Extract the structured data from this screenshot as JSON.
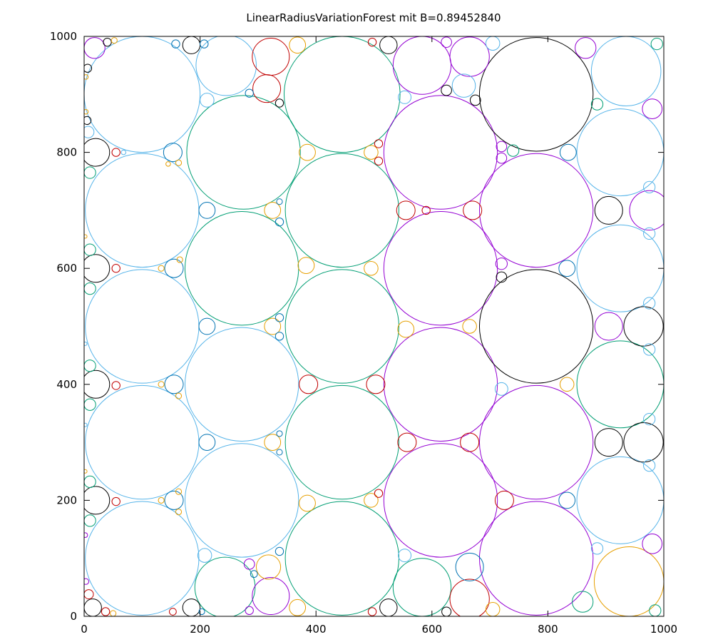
{
  "chart_data": {
    "type": "scatter",
    "title": "LinearRadiusVariationForest mit B=0.89452840",
    "xlabel": "",
    "ylabel": "",
    "xlim": [
      0,
      1000
    ],
    "ylim": [
      0,
      1000
    ],
    "x_ticks": [
      "0",
      "200",
      "400",
      "600",
      "800",
      "1000"
    ],
    "y_ticks": [
      "0",
      "200",
      "400",
      "600",
      "800",
      "1000"
    ],
    "x_tick_values": [
      0,
      200,
      400,
      600,
      800,
      1000
    ],
    "y_tick_values": [
      0,
      200,
      400,
      600,
      800,
      1000
    ],
    "grid": false,
    "colors": {
      "black": "#000000",
      "teal": "#009e73",
      "blue": "#56b4e9",
      "purple": "#9400d3",
      "red": "#c00000",
      "gold": "#e69f00",
      "navy": "#0072b2"
    },
    "circles": [
      {
        "x": 100,
        "y": 900,
        "r": 100,
        "color": "blue"
      },
      {
        "x": 100,
        "y": 700,
        "r": 98,
        "color": "blue"
      },
      {
        "x": 100,
        "y": 500,
        "r": 98,
        "color": "blue"
      },
      {
        "x": 100,
        "y": 300,
        "r": 98,
        "color": "blue"
      },
      {
        "x": 100,
        "y": 100,
        "r": 98,
        "color": "blue"
      },
      {
        "x": 275,
        "y": 800,
        "r": 98,
        "color": "teal"
      },
      {
        "x": 272,
        "y": 600,
        "r": 98,
        "color": "teal"
      },
      {
        "x": 272,
        "y": 400,
        "r": 98,
        "color": "blue"
      },
      {
        "x": 272,
        "y": 200,
        "r": 98,
        "color": "blue"
      },
      {
        "x": 445,
        "y": 900,
        "r": 100,
        "color": "teal"
      },
      {
        "x": 445,
        "y": 700,
        "r": 98,
        "color": "teal"
      },
      {
        "x": 445,
        "y": 500,
        "r": 98,
        "color": "teal"
      },
      {
        "x": 445,
        "y": 300,
        "r": 98,
        "color": "teal"
      },
      {
        "x": 445,
        "y": 100,
        "r": 98,
        "color": "teal"
      },
      {
        "x": 615,
        "y": 800,
        "r": 98,
        "color": "purple"
      },
      {
        "x": 615,
        "y": 600,
        "r": 98,
        "color": "purple"
      },
      {
        "x": 615,
        "y": 400,
        "r": 98,
        "color": "purple"
      },
      {
        "x": 615,
        "y": 200,
        "r": 98,
        "color": "purple"
      },
      {
        "x": 780,
        "y": 900,
        "r": 98,
        "color": "black"
      },
      {
        "x": 780,
        "y": 700,
        "r": 98,
        "color": "purple"
      },
      {
        "x": 780,
        "y": 500,
        "r": 98,
        "color": "black"
      },
      {
        "x": 780,
        "y": 300,
        "r": 98,
        "color": "purple"
      },
      {
        "x": 780,
        "y": 100,
        "r": 98,
        "color": "purple"
      },
      {
        "x": 935,
        "y": 940,
        "r": 60,
        "color": "blue"
      },
      {
        "x": 925,
        "y": 800,
        "r": 75,
        "color": "blue"
      },
      {
        "x": 925,
        "y": 600,
        "r": 75,
        "color": "blue"
      },
      {
        "x": 925,
        "y": 400,
        "r": 75,
        "color": "teal"
      },
      {
        "x": 925,
        "y": 200,
        "r": 75,
        "color": "blue"
      },
      {
        "x": 940,
        "y": 60,
        "r": 60,
        "color": "gold"
      },
      {
        "x": 245,
        "y": 950,
        "r": 52,
        "color": "blue"
      },
      {
        "x": 243,
        "y": 50,
        "r": 52,
        "color": "teal"
      },
      {
        "x": 583,
        "y": 950,
        "r": 50,
        "color": "purple"
      },
      {
        "x": 583,
        "y": 50,
        "r": 50,
        "color": "teal"
      },
      {
        "x": 665,
        "y": 965,
        "r": 34,
        "color": "purple"
      },
      {
        "x": 665,
        "y": 30,
        "r": 34,
        "color": "red"
      },
      {
        "x": 322,
        "y": 965,
        "r": 32,
        "color": "red"
      },
      {
        "x": 322,
        "y": 35,
        "r": 32,
        "color": "purple"
      },
      {
        "x": 315,
        "y": 910,
        "r": 24,
        "color": "red"
      },
      {
        "x": 318,
        "y": 85,
        "r": 21,
        "color": "gold"
      },
      {
        "x": 975,
        "y": 700,
        "r": 34,
        "color": "purple"
      },
      {
        "x": 905,
        "y": 700,
        "r": 24,
        "color": "black"
      },
      {
        "x": 965,
        "y": 500,
        "r": 34,
        "color": "black"
      },
      {
        "x": 905,
        "y": 500,
        "r": 24,
        "color": "purple"
      },
      {
        "x": 965,
        "y": 300,
        "r": 34,
        "color": "black"
      },
      {
        "x": 905,
        "y": 300,
        "r": 24,
        "color": "black"
      },
      {
        "x": 980,
        "y": 875,
        "r": 17,
        "color": "purple"
      },
      {
        "x": 980,
        "y": 125,
        "r": 17,
        "color": "purple"
      },
      {
        "x": 20,
        "y": 800,
        "r": 24,
        "color": "black"
      },
      {
        "x": 20,
        "y": 600,
        "r": 24,
        "color": "black"
      },
      {
        "x": 20,
        "y": 400,
        "r": 24,
        "color": "black"
      },
      {
        "x": 20,
        "y": 200,
        "r": 24,
        "color": "black"
      },
      {
        "x": 18,
        "y": 980,
        "r": 18,
        "color": "purple"
      },
      {
        "x": 15,
        "y": 15,
        "r": 15,
        "color": "black"
      },
      {
        "x": 185,
        "y": 985,
        "r": 15,
        "color": "black"
      },
      {
        "x": 185,
        "y": 15,
        "r": 15,
        "color": "black"
      },
      {
        "x": 525,
        "y": 985,
        "r": 15,
        "color": "black"
      },
      {
        "x": 525,
        "y": 15,
        "r": 15,
        "color": "black"
      },
      {
        "x": 153,
        "y": 800,
        "r": 16,
        "color": "navy"
      },
      {
        "x": 155,
        "y": 600,
        "r": 16,
        "color": "navy"
      },
      {
        "x": 155,
        "y": 400,
        "r": 16,
        "color": "navy"
      },
      {
        "x": 155,
        "y": 200,
        "r": 16,
        "color": "navy"
      },
      {
        "x": 212,
        "y": 700,
        "r": 14,
        "color": "navy"
      },
      {
        "x": 212,
        "y": 500,
        "r": 14,
        "color": "navy"
      },
      {
        "x": 212,
        "y": 300,
        "r": 14,
        "color": "navy"
      },
      {
        "x": 212,
        "y": 890,
        "r": 12,
        "color": "blue"
      },
      {
        "x": 208,
        "y": 105,
        "r": 12,
        "color": "blue"
      },
      {
        "x": 385,
        "y": 800,
        "r": 14,
        "color": "gold"
      },
      {
        "x": 325,
        "y": 700,
        "r": 14,
        "color": "gold"
      },
      {
        "x": 383,
        "y": 605,
        "r": 14,
        "color": "gold"
      },
      {
        "x": 325,
        "y": 500,
        "r": 14,
        "color": "gold"
      },
      {
        "x": 387,
        "y": 400,
        "r": 16,
        "color": "red"
      },
      {
        "x": 325,
        "y": 300,
        "r": 14,
        "color": "gold"
      },
      {
        "x": 385,
        "y": 195,
        "r": 14,
        "color": "gold"
      },
      {
        "x": 368,
        "y": 985,
        "r": 14,
        "color": "gold"
      },
      {
        "x": 368,
        "y": 15,
        "r": 14,
        "color": "gold"
      },
      {
        "x": 503,
        "y": 400,
        "r": 16,
        "color": "red"
      },
      {
        "x": 495,
        "y": 800,
        "r": 12,
        "color": "gold"
      },
      {
        "x": 495,
        "y": 600,
        "r": 12,
        "color": "gold"
      },
      {
        "x": 495,
        "y": 200,
        "r": 12,
        "color": "gold"
      },
      {
        "x": 555,
        "y": 700,
        "r": 16,
        "color": "red"
      },
      {
        "x": 555,
        "y": 495,
        "r": 14,
        "color": "gold"
      },
      {
        "x": 557,
        "y": 300,
        "r": 16,
        "color": "red"
      },
      {
        "x": 670,
        "y": 700,
        "r": 16,
        "color": "red"
      },
      {
        "x": 665,
        "y": 500,
        "r": 12,
        "color": "gold"
      },
      {
        "x": 665,
        "y": 300,
        "r": 16,
        "color": "red"
      },
      {
        "x": 665,
        "y": 85,
        "r": 24,
        "color": "navy"
      },
      {
        "x": 655,
        "y": 915,
        "r": 20,
        "color": "blue"
      },
      {
        "x": 725,
        "y": 200,
        "r": 16,
        "color": "red"
      },
      {
        "x": 835,
        "y": 800,
        "r": 14,
        "color": "navy"
      },
      {
        "x": 833,
        "y": 600,
        "r": 14,
        "color": "navy"
      },
      {
        "x": 833,
        "y": 400,
        "r": 12,
        "color": "gold"
      },
      {
        "x": 833,
        "y": 200,
        "r": 14,
        "color": "navy"
      },
      {
        "x": 865,
        "y": 980,
        "r": 18,
        "color": "purple"
      },
      {
        "x": 860,
        "y": 25,
        "r": 18,
        "color": "teal"
      },
      {
        "x": 975,
        "y": 460,
        "r": 10,
        "color": "blue"
      },
      {
        "x": 975,
        "y": 540,
        "r": 10,
        "color": "blue"
      },
      {
        "x": 975,
        "y": 340,
        "r": 10,
        "color": "blue"
      },
      {
        "x": 975,
        "y": 260,
        "r": 10,
        "color": "blue"
      },
      {
        "x": 975,
        "y": 740,
        "r": 10,
        "color": "blue"
      },
      {
        "x": 975,
        "y": 660,
        "r": 10,
        "color": "blue"
      },
      {
        "x": 988,
        "y": 987,
        "r": 10,
        "color": "teal"
      },
      {
        "x": 985,
        "y": 10,
        "r": 10,
        "color": "teal"
      },
      {
        "x": 885,
        "y": 883,
        "r": 10,
        "color": "teal"
      },
      {
        "x": 885,
        "y": 117,
        "r": 10,
        "color": "blue"
      },
      {
        "x": 740,
        "y": 803,
        "r": 10,
        "color": "teal"
      },
      {
        "x": 720,
        "y": 810,
        "r": 9,
        "color": "purple"
      },
      {
        "x": 720,
        "y": 790,
        "r": 9,
        "color": "purple"
      },
      {
        "x": 720,
        "y": 608,
        "r": 10,
        "color": "purple"
      },
      {
        "x": 720,
        "y": 585,
        "r": 9,
        "color": "black"
      },
      {
        "x": 720,
        "y": 392,
        "r": 11,
        "color": "blue"
      },
      {
        "x": 705,
        "y": 12,
        "r": 12,
        "color": "gold"
      },
      {
        "x": 705,
        "y": 988,
        "r": 12,
        "color": "blue"
      },
      {
        "x": 675,
        "y": 890,
        "r": 9,
        "color": "black"
      },
      {
        "x": 625,
        "y": 907,
        "r": 9,
        "color": "black"
      },
      {
        "x": 625,
        "y": 990,
        "r": 9,
        "color": "purple"
      },
      {
        "x": 625,
        "y": 8,
        "r": 8,
        "color": "black"
      },
      {
        "x": 590,
        "y": 700,
        "r": 7,
        "color": "red"
      },
      {
        "x": 553,
        "y": 895,
        "r": 11,
        "color": "blue"
      },
      {
        "x": 553,
        "y": 105,
        "r": 11,
        "color": "blue"
      },
      {
        "x": 508,
        "y": 815,
        "r": 7,
        "color": "red"
      },
      {
        "x": 508,
        "y": 785,
        "r": 7,
        "color": "red"
      },
      {
        "x": 508,
        "y": 212,
        "r": 7,
        "color": "red"
      },
      {
        "x": 497,
        "y": 990,
        "r": 7,
        "color": "red"
      },
      {
        "x": 497,
        "y": 8,
        "r": 7,
        "color": "red"
      },
      {
        "x": 337,
        "y": 885,
        "r": 7,
        "color": "black"
      },
      {
        "x": 285,
        "y": 902,
        "r": 7,
        "color": "navy"
      },
      {
        "x": 337,
        "y": 112,
        "r": 7,
        "color": "navy"
      },
      {
        "x": 285,
        "y": 90,
        "r": 9,
        "color": "purple"
      },
      {
        "x": 293,
        "y": 73,
        "r": 6,
        "color": "navy"
      },
      {
        "x": 337,
        "y": 715,
        "r": 5,
        "color": "navy"
      },
      {
        "x": 337,
        "y": 680,
        "r": 7,
        "color": "navy"
      },
      {
        "x": 337,
        "y": 515,
        "r": 7,
        "color": "navy"
      },
      {
        "x": 337,
        "y": 483,
        "r": 7,
        "color": "navy"
      },
      {
        "x": 337,
        "y": 315,
        "r": 5,
        "color": "navy"
      },
      {
        "x": 337,
        "y": 283,
        "r": 5,
        "color": "navy"
      },
      {
        "x": 285,
        "y": 10,
        "r": 7,
        "color": "purple"
      },
      {
        "x": 207,
        "y": 987,
        "r": 7,
        "color": "navy"
      },
      {
        "x": 158,
        "y": 987,
        "r": 7,
        "color": "navy"
      },
      {
        "x": 203,
        "y": 8,
        "r": 5,
        "color": "navy"
      },
      {
        "x": 153,
        "y": 8,
        "r": 6,
        "color": "red"
      },
      {
        "x": 40,
        "y": 990,
        "r": 7,
        "color": "black"
      },
      {
        "x": 52,
        "y": 993,
        "r": 5,
        "color": "gold"
      },
      {
        "x": 6,
        "y": 945,
        "r": 7,
        "color": "black"
      },
      {
        "x": 3,
        "y": 930,
        "r": 4,
        "color": "gold"
      },
      {
        "x": 55,
        "y": 800,
        "r": 7,
        "color": "red"
      },
      {
        "x": 55,
        "y": 600,
        "r": 7,
        "color": "red"
      },
      {
        "x": 55,
        "y": 398,
        "r": 7,
        "color": "red"
      },
      {
        "x": 55,
        "y": 198,
        "r": 7,
        "color": "red"
      },
      {
        "x": 68,
        "y": 800,
        "r": 4,
        "color": "blue"
      },
      {
        "x": 10,
        "y": 765,
        "r": 10,
        "color": "teal"
      },
      {
        "x": 10,
        "y": 632,
        "r": 10,
        "color": "teal"
      },
      {
        "x": 10,
        "y": 565,
        "r": 10,
        "color": "teal"
      },
      {
        "x": 10,
        "y": 432,
        "r": 10,
        "color": "teal"
      },
      {
        "x": 10,
        "y": 365,
        "r": 10,
        "color": "teal"
      },
      {
        "x": 10,
        "y": 232,
        "r": 10,
        "color": "teal"
      },
      {
        "x": 10,
        "y": 165,
        "r": 10,
        "color": "teal"
      },
      {
        "x": 7,
        "y": 835,
        "r": 10,
        "color": "blue"
      },
      {
        "x": 5,
        "y": 855,
        "r": 7,
        "color": "black"
      },
      {
        "x": 3,
        "y": 870,
        "r": 4,
        "color": "gold"
      },
      {
        "x": 8,
        "y": 38,
        "r": 8,
        "color": "red"
      },
      {
        "x": 37,
        "y": 8,
        "r": 7,
        "color": "red"
      },
      {
        "x": 50,
        "y": 5,
        "r": 5,
        "color": "gold"
      },
      {
        "x": 3,
        "y": 60,
        "r": 5,
        "color": "purple"
      },
      {
        "x": 2,
        "y": 140,
        "r": 4,
        "color": "purple"
      },
      {
        "x": 2,
        "y": 655,
        "r": 3,
        "color": "gold"
      },
      {
        "x": 2,
        "y": 470,
        "r": 3,
        "color": "blue"
      },
      {
        "x": 2,
        "y": 330,
        "r": 3,
        "color": "blue"
      },
      {
        "x": 2,
        "y": 250,
        "r": 3,
        "color": "gold"
      },
      {
        "x": 145,
        "y": 780,
        "r": 4,
        "color": "gold"
      },
      {
        "x": 163,
        "y": 782,
        "r": 5,
        "color": "gold"
      },
      {
        "x": 163,
        "y": 380,
        "r": 5,
        "color": "gold"
      },
      {
        "x": 163,
        "y": 180,
        "r": 5,
        "color": "gold"
      },
      {
        "x": 163,
        "y": 215,
        "r": 5,
        "color": "gold"
      },
      {
        "x": 133,
        "y": 200,
        "r": 5,
        "color": "gold"
      },
      {
        "x": 133,
        "y": 400,
        "r": 5,
        "color": "gold"
      },
      {
        "x": 133,
        "y": 600,
        "r": 5,
        "color": "gold"
      },
      {
        "x": 165,
        "y": 615,
        "r": 5,
        "color": "gold"
      }
    ]
  }
}
